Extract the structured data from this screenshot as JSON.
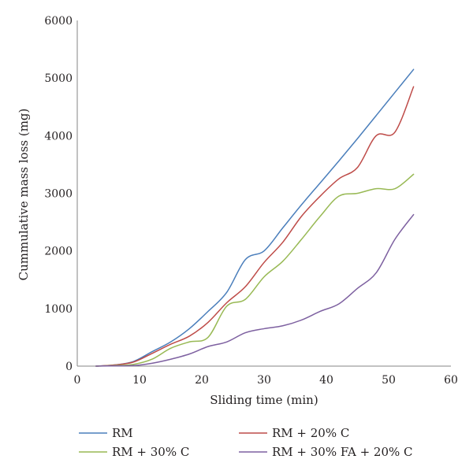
{
  "chart_data": {
    "type": "line",
    "xlabel": "Sliding time (min)",
    "ylabel": "Cummulative mass loss (mg)",
    "xlim": [
      0,
      60
    ],
    "ylim": [
      0,
      6000
    ],
    "xticks": [
      "0",
      "10",
      "20",
      "30",
      "40",
      "50",
      "60"
    ],
    "yticks": [
      "0",
      "1000",
      "2000",
      "3000",
      "4000",
      "5000",
      "6000"
    ],
    "grid": false,
    "legend_position": "bottom",
    "series": [
      {
        "name": "RM",
        "color": "#4a7ebb",
        "points": [
          [
            3,
            0
          ],
          [
            6,
            20
          ],
          [
            9,
            80
          ],
          [
            12,
            250
          ],
          [
            15,
            420
          ],
          [
            18,
            650
          ],
          [
            21,
            950
          ],
          [
            24,
            1280
          ],
          [
            27,
            1850
          ],
          [
            30,
            2000
          ],
          [
            33,
            2400
          ],
          [
            36,
            2800
          ],
          [
            39,
            3180
          ],
          [
            42,
            3560
          ],
          [
            45,
            3950
          ],
          [
            48,
            4350
          ],
          [
            51,
            4750
          ],
          [
            54,
            5150
          ]
        ]
      },
      {
        "name": "RM + 20% C",
        "color": "#be4b48",
        "points": [
          [
            3,
            0
          ],
          [
            6,
            20
          ],
          [
            9,
            70
          ],
          [
            12,
            220
          ],
          [
            15,
            380
          ],
          [
            18,
            520
          ],
          [
            21,
            760
          ],
          [
            24,
            1100
          ],
          [
            27,
            1380
          ],
          [
            30,
            1800
          ],
          [
            33,
            2150
          ],
          [
            36,
            2600
          ],
          [
            39,
            2950
          ],
          [
            42,
            3250
          ],
          [
            45,
            3450
          ],
          [
            48,
            4000
          ],
          [
            51,
            4060
          ],
          [
            54,
            4850
          ]
        ]
      },
      {
        "name": "RM + 30% C",
        "color": "#98b954",
        "points": [
          [
            3,
            0
          ],
          [
            6,
            10
          ],
          [
            9,
            30
          ],
          [
            12,
            120
          ],
          [
            15,
            310
          ],
          [
            18,
            420
          ],
          [
            21,
            500
          ],
          [
            24,
            1040
          ],
          [
            27,
            1160
          ],
          [
            30,
            1550
          ],
          [
            33,
            1820
          ],
          [
            36,
            2200
          ],
          [
            39,
            2600
          ],
          [
            42,
            2950
          ],
          [
            45,
            3000
          ],
          [
            48,
            3080
          ],
          [
            51,
            3080
          ],
          [
            54,
            3330
          ]
        ]
      },
      {
        "name": "RM + 30% FA + 20% C",
        "color": "#7d60a0",
        "points": [
          [
            3,
            0
          ],
          [
            6,
            5
          ],
          [
            9,
            10
          ],
          [
            12,
            50
          ],
          [
            15,
            120
          ],
          [
            18,
            210
          ],
          [
            21,
            340
          ],
          [
            24,
            420
          ],
          [
            27,
            580
          ],
          [
            30,
            650
          ],
          [
            33,
            700
          ],
          [
            36,
            800
          ],
          [
            39,
            950
          ],
          [
            42,
            1080
          ],
          [
            45,
            1350
          ],
          [
            48,
            1620
          ],
          [
            51,
            2200
          ],
          [
            54,
            2630
          ]
        ]
      }
    ]
  }
}
